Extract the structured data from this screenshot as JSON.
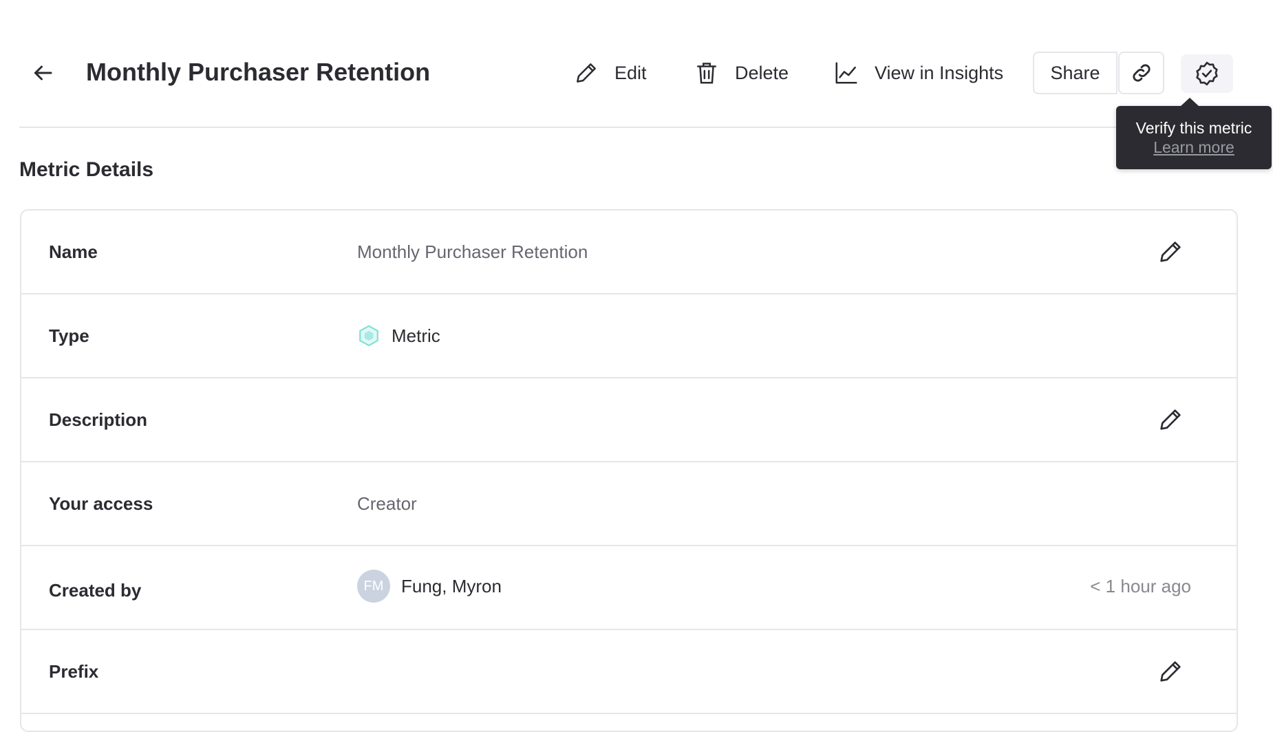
{
  "header": {
    "title": "Monthly Purchaser Retention",
    "edit_label": "Edit",
    "delete_label": "Delete",
    "insights_label": "View in Insights",
    "share_label": "Share"
  },
  "tooltip": {
    "text": "Verify this metric",
    "link": "Learn more"
  },
  "section_title": "Metric Details",
  "details": {
    "name": {
      "label": "Name",
      "value": "Monthly Purchaser Retention"
    },
    "type": {
      "label": "Type",
      "value": "Metric"
    },
    "description": {
      "label": "Description"
    },
    "access": {
      "label": "Your access",
      "value": "Creator"
    },
    "created_by": {
      "label": "Created by",
      "initials": "FM",
      "value": "Fung, Myron",
      "time": "< 1 hour ago"
    },
    "prefix": {
      "label": "Prefix"
    }
  },
  "colors": {
    "tooltip_bg": "#2b2b31",
    "metric_icon": "#7fe0d8",
    "avatar": "#cbd3e1",
    "border": "#e6e6ea"
  }
}
